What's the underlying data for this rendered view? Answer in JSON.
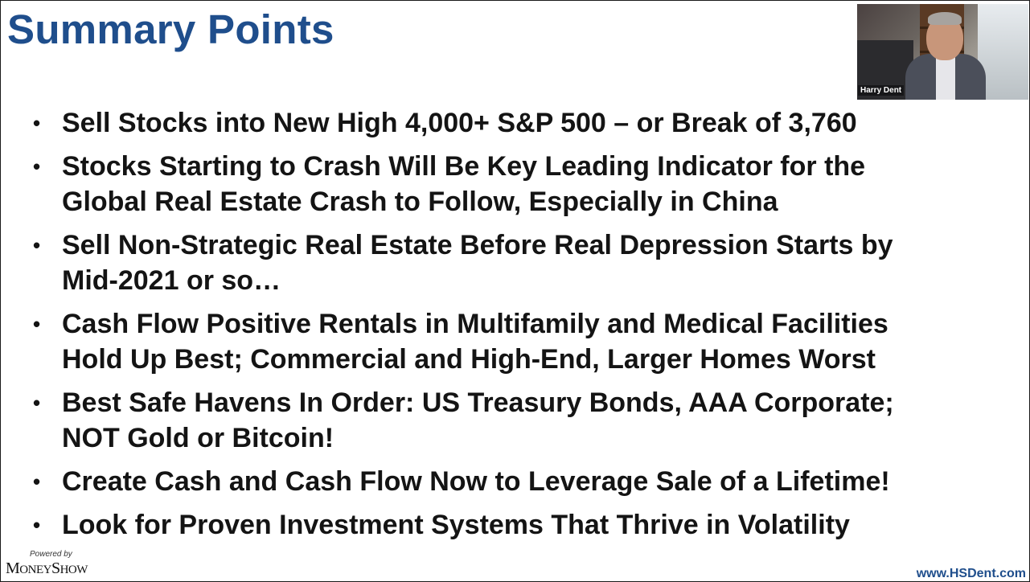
{
  "slide": {
    "title": "Summary Points",
    "bullet_glyph": "•",
    "bullets": [
      {
        "lines": [
          "Sell Stocks into New High 4,000+ S&P 500 – or Break of 3,760"
        ]
      },
      {
        "lines": [
          "Stocks Starting to Crash Will Be Key Leading Indicator for the",
          "Global Real Estate Crash to Follow, Especially in China"
        ]
      },
      {
        "lines": [
          "Sell Non-Strategic Real Estate Before Real Depression Starts by",
          "Mid-2021 or so…"
        ]
      },
      {
        "lines": [
          "Cash Flow Positive Rentals in Multifamily and Medical Facilities",
          "Hold Up Best; Commercial and High-End, Larger Homes Worst"
        ]
      },
      {
        "lines": [
          "Best Safe Havens In Order: US Treasury Bonds, AAA Corporate;",
          "NOT Gold or Bitcoin!"
        ]
      },
      {
        "lines": [
          "Create Cash and Cash Flow Now to Leverage Sale of a Lifetime!"
        ]
      },
      {
        "lines": [
          "Look for Proven Investment Systems That Thrive in Volatility"
        ]
      }
    ]
  },
  "video": {
    "participant_name": "Harry Dent"
  },
  "footer": {
    "powered_by": "Powered by",
    "brand_m": "M",
    "brand_oney": "ONEY",
    "brand_s": "S",
    "brand_how": "HOW",
    "url": "www.HSDent.com"
  },
  "colors": {
    "title": "#1f4e8c",
    "text": "#141414",
    "url": "#1f4e8c"
  }
}
